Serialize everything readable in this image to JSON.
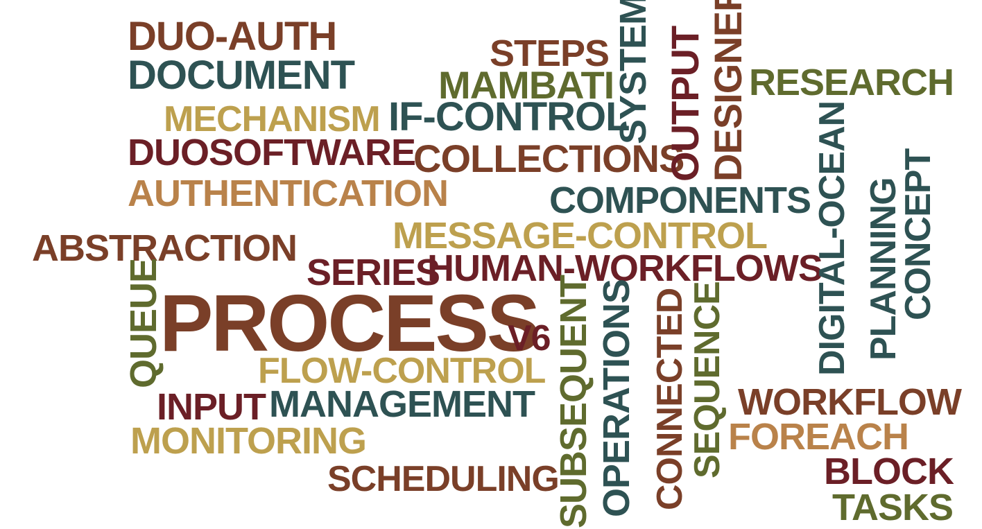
{
  "colors": {
    "brown": "#7a3f28",
    "dark_red": "#6b1f26",
    "teal": "#2e5253",
    "olive": "#5f6b2e",
    "gold": "#bda04e",
    "orange": "#b9824a"
  },
  "words": {
    "duo_auth": "DUO-AUTH",
    "document": "DOCUMENT",
    "steps": "STEPS",
    "mambati": "MAMBATI",
    "system": "SYSTEM",
    "output": "OUTPUT",
    "designer": "DESIGNER",
    "research": "RESEARCH",
    "mechanism": "MECHANISM",
    "if_control": "IF-CONTROL",
    "duosoftware": "DUOSOFTWARE",
    "collections": "COLLECTIONS",
    "authentication": "AUTHENTICATION",
    "components": "COMPONENTS",
    "digital_ocean": "DIGITAL-OCEAN",
    "concept": "CONCEPT",
    "planning": "PLANNING",
    "message_control": "MESSAGE-CONTROL",
    "abstraction": "ABSTRACTION",
    "series": "SERIES",
    "human_workflows": "HUMAN-WORKFLOWS",
    "queue": "QUEUE",
    "process": "PROCESS",
    "v6": "V6",
    "flow_control": "FLOW-CONTROL",
    "subsequent": "SUBSEQUENT",
    "operations": "OPERATIONS",
    "connected": "CONNECTED",
    "sequence": "SEQUENCE",
    "input": "INPUT",
    "management": "MANAGEMENT",
    "workflow": "WORKFLOW",
    "monitoring": "MONITORING",
    "foreach": "FOREACH",
    "block": "BLOCK",
    "scheduling": "SCHEDULING",
    "tasks": "TASKS"
  }
}
